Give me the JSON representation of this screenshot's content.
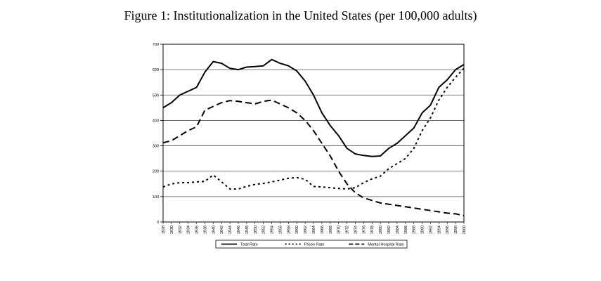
{
  "figure": {
    "title": "Figure 1: Institutionalization in the United States (per 100,000 adults)"
  },
  "chart_data": {
    "type": "line",
    "title": "Figure 1: Institutionalization in the United States (per 100,000 adults)",
    "xlabel": "",
    "ylabel": "",
    "ylim": [
      0,
      700
    ],
    "yticks": [
      0,
      100,
      200,
      300,
      400,
      500,
      600,
      700
    ],
    "grid": true,
    "legend_position": "bottom",
    "x": [
      1928,
      1930,
      1932,
      1934,
      1936,
      1938,
      1940,
      1942,
      1944,
      1946,
      1948,
      1950,
      1952,
      1954,
      1956,
      1958,
      1960,
      1962,
      1964,
      1966,
      1968,
      1970,
      1972,
      1974,
      1976,
      1978,
      1980,
      1982,
      1984,
      1986,
      1988,
      1990,
      1992,
      1994,
      1996,
      1998,
      2000
    ],
    "series": [
      {
        "name": "Total Rate",
        "style": "solid",
        "values": [
          450,
          470,
          500,
          515,
          530,
          590,
          632,
          625,
          605,
          600,
          610,
          612,
          615,
          640,
          625,
          615,
          595,
          555,
          500,
          430,
          380,
          340,
          290,
          268,
          262,
          258,
          260,
          290,
          310,
          340,
          370,
          430,
          460,
          530,
          560,
          600,
          620
        ]
      },
      {
        "name": "Prison Rate",
        "style": "dotted",
        "values": [
          138,
          150,
          155,
          155,
          158,
          160,
          185,
          158,
          130,
          130,
          140,
          148,
          152,
          158,
          165,
          172,
          175,
          168,
          140,
          138,
          135,
          132,
          130,
          135,
          155,
          170,
          180,
          210,
          230,
          250,
          290,
          360,
          410,
          480,
          530,
          570,
          605
        ]
      },
      {
        "name": "Mental Hospital Rate",
        "style": "dashed",
        "values": [
          312,
          320,
          340,
          360,
          375,
          440,
          455,
          470,
          478,
          475,
          470,
          465,
          475,
          480,
          465,
          450,
          430,
          400,
          360,
          310,
          260,
          200,
          150,
          115,
          95,
          85,
          75,
          70,
          65,
          60,
          55,
          50,
          45,
          40,
          35,
          32,
          25
        ]
      }
    ]
  }
}
